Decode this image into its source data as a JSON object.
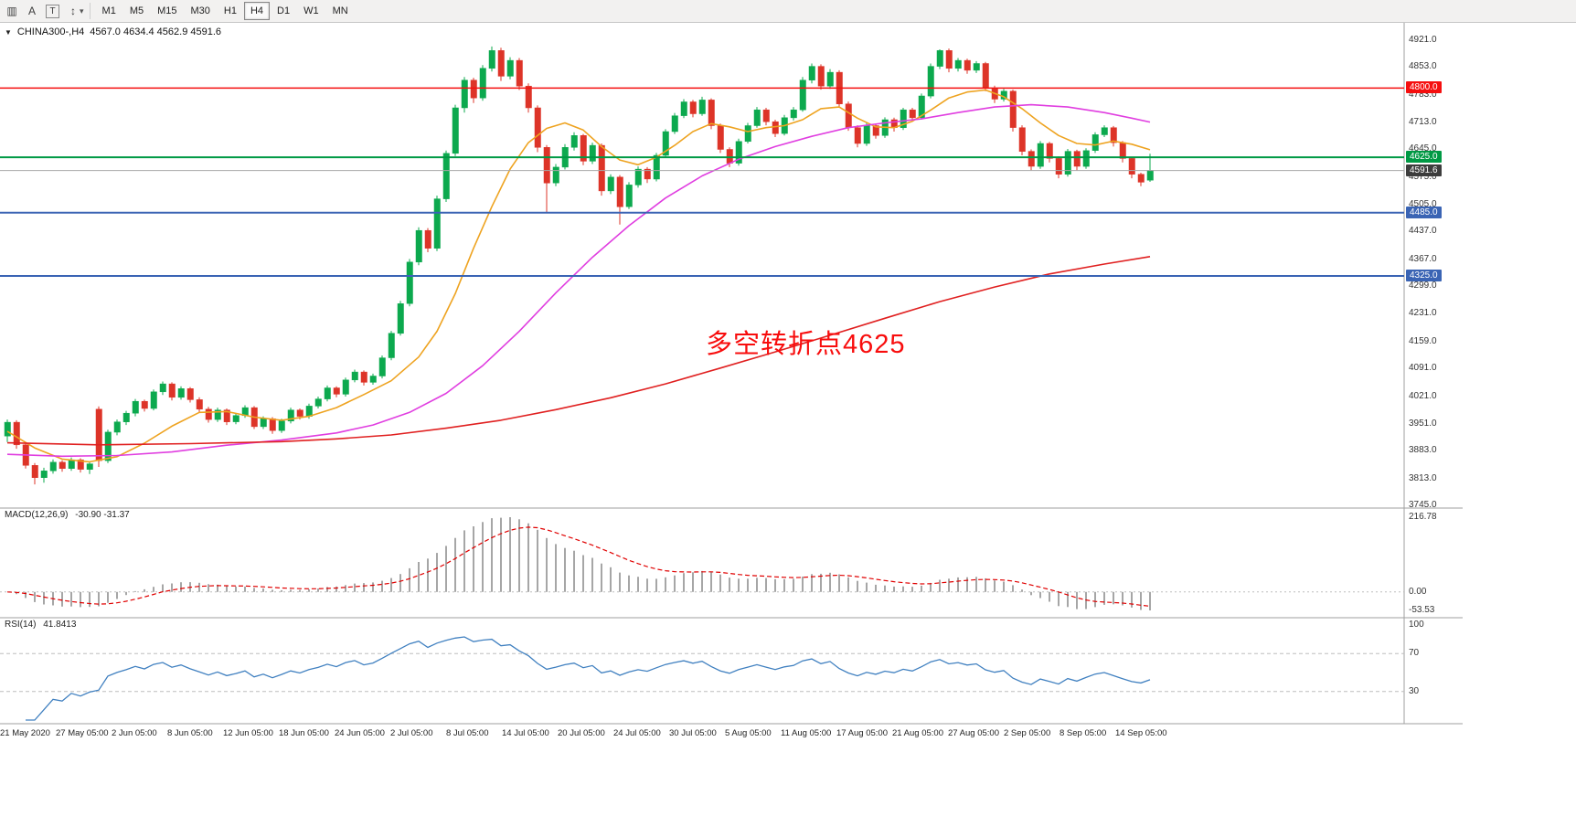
{
  "toolbar": {
    "icons": [
      {
        "name": "chart-window-icon",
        "glyph": "▥",
        "boxed": false
      },
      {
        "name": "cursor-tool-icon",
        "glyph": "A",
        "boxed": false
      },
      {
        "name": "text-label-tool-icon",
        "glyph": "T",
        "boxed": true
      },
      {
        "name": "cycle-symbols-icon",
        "glyph": "↕",
        "boxed": false
      }
    ],
    "dropdown_caret": "▾",
    "timeframes": [
      "M1",
      "M5",
      "M15",
      "M30",
      "H1",
      "H4",
      "D1",
      "W1",
      "MN"
    ],
    "active_timeframe": "H4"
  },
  "chart_data": {
    "type": "candlestick",
    "title": "CHINA300-,H4",
    "collapse_icon": "▼",
    "ohlc_text": "4567.0 4634.4 4562.9 4591.6",
    "ohlc_display": {
      "open": 4567.0,
      "high": 4634.4,
      "low": 4562.9,
      "close": 4591.6
    },
    "annotation": {
      "text": "多空转折点4625",
      "color": "#f80d0d"
    },
    "candle_colors": {
      "bull": "#0ca94e",
      "bear": "#dd3428"
    },
    "price_axis": {
      "min": 3745.0,
      "max": 4921.0,
      "ticks": [
        "4921.0",
        "4853.0",
        "4783.0",
        "4713.0",
        "4645.0",
        "4575.0",
        "4505.0",
        "4437.0",
        "4367.0",
        "4299.0",
        "4231.0",
        "4159.0",
        "4091.0",
        "4021.0",
        "3951.0",
        "3883.0",
        "3813.0",
        "3745.0"
      ]
    },
    "levels": [
      {
        "value": 4800.0,
        "label": "4800.0",
        "color": "#f50f0f",
        "width": 1.5
      },
      {
        "value": 4625.0,
        "label": "4625.0",
        "color": "#009944",
        "width": 2
      },
      {
        "value": 4591.6,
        "label": "4591.6",
        "color": "#a8a8a8",
        "label_bg": "#3d3d3d",
        "width": 1
      },
      {
        "value": 4485.0,
        "label": "4485.0",
        "color": "#3a64b4",
        "width": 2
      },
      {
        "value": 4325.0,
        "label": "4325.0",
        "color": "#3a64b4",
        "width": 2
      }
    ],
    "x_labels": [
      "21 May 2020",
      "27 May 05:00",
      "2 Jun 05:00",
      "8 Jun 05:00",
      "12 Jun 05:00",
      "18 Jun 05:00",
      "24 Jun 05:00",
      "2 Jul 05:00",
      "8 Jul 05:00",
      "14 Jul 05:00",
      "20 Jul 05:00",
      "24 Jul 05:00",
      "30 Jul 05:00",
      "5 Aug 05:00",
      "11 Aug 05:00",
      "17 Aug 05:00",
      "21 Aug 05:00",
      "27 Aug 05:00",
      "2 Sep 05:00",
      "8 Sep 05:00",
      "14 Sep 05:00"
    ],
    "candles": [
      [
        3920,
        3962,
        3905,
        3955
      ],
      [
        3955,
        3960,
        3888,
        3898
      ],
      [
        3898,
        3903,
        3838,
        3846
      ],
      [
        3846,
        3852,
        3798,
        3815
      ],
      [
        3815,
        3840,
        3802,
        3832
      ],
      [
        3832,
        3861,
        3825,
        3854
      ],
      [
        3854,
        3859,
        3830,
        3838
      ],
      [
        3838,
        3866,
        3832,
        3860
      ],
      [
        3860,
        3864,
        3828,
        3836
      ],
      [
        3836,
        3856,
        3824,
        3850
      ],
      [
        3988,
        3995,
        3842,
        3858
      ],
      [
        3858,
        3936,
        3852,
        3930
      ],
      [
        3930,
        3962,
        3922,
        3956
      ],
      [
        3956,
        3984,
        3948,
        3978
      ],
      [
        3978,
        4014,
        3970,
        4008
      ],
      [
        4008,
        4012,
        3982,
        3990
      ],
      [
        3990,
        4038,
        3985,
        4032
      ],
      [
        4032,
        4058,
        4024,
        4052
      ],
      [
        4052,
        4056,
        4010,
        4018
      ],
      [
        4018,
        4046,
        4012,
        4040
      ],
      [
        4040,
        4044,
        4005,
        4012
      ],
      [
        4012,
        4018,
        3980,
        3988
      ],
      [
        3988,
        3994,
        3954,
        3962
      ],
      [
        3962,
        3992,
        3956,
        3986
      ],
      [
        3986,
        3990,
        3948,
        3956
      ],
      [
        3956,
        3978,
        3950,
        3972
      ],
      [
        3972,
        3998,
        3966,
        3992
      ],
      [
        3992,
        3996,
        3938,
        3944
      ],
      [
        3944,
        3970,
        3938,
        3964
      ],
      [
        3964,
        3968,
        3926,
        3934
      ],
      [
        3934,
        3964,
        3928,
        3958
      ],
      [
        3958,
        3992,
        3952,
        3986
      ],
      [
        3986,
        3990,
        3962,
        3970
      ],
      [
        3970,
        4002,
        3964,
        3996
      ],
      [
        3996,
        4020,
        3990,
        4014
      ],
      [
        4014,
        4048,
        4008,
        4042
      ],
      [
        4042,
        4046,
        4018,
        4026
      ],
      [
        4026,
        4068,
        4020,
        4062
      ],
      [
        4062,
        4088,
        4056,
        4082
      ],
      [
        4082,
        4086,
        4048,
        4056
      ],
      [
        4056,
        4078,
        4050,
        4072
      ],
      [
        4072,
        4124,
        4066,
        4118
      ],
      [
        4118,
        4186,
        4112,
        4180
      ],
      [
        4180,
        4262,
        4174,
        4255
      ],
      [
        4255,
        4368,
        4248,
        4360
      ],
      [
        4360,
        4448,
        4352,
        4440
      ],
      [
        4440,
        4446,
        4385,
        4395
      ],
      [
        4395,
        4528,
        4388,
        4520
      ],
      [
        4520,
        4642,
        4512,
        4635
      ],
      [
        4635,
        4758,
        4628,
        4750
      ],
      [
        4750,
        4828,
        4738,
        4820
      ],
      [
        4820,
        4826,
        4762,
        4775
      ],
      [
        4775,
        4858,
        4768,
        4850
      ],
      [
        4850,
        4905,
        4842,
        4895
      ],
      [
        4895,
        4902,
        4818,
        4830
      ],
      [
        4830,
        4878,
        4822,
        4870
      ],
      [
        4870,
        4876,
        4795,
        4805
      ],
      [
        4805,
        4812,
        4738,
        4750
      ],
      [
        4750,
        4756,
        4638,
        4650
      ],
      [
        4650,
        4656,
        4486,
        4560
      ],
      [
        4560,
        4608,
        4552,
        4600
      ],
      [
        4600,
        4658,
        4594,
        4650
      ],
      [
        4650,
        4688,
        4642,
        4680
      ],
      [
        4680,
        4684,
        4605,
        4615
      ],
      [
        4615,
        4662,
        4608,
        4655
      ],
      [
        4655,
        4660,
        4528,
        4540
      ],
      [
        4540,
        4582,
        4532,
        4575
      ],
      [
        4575,
        4580,
        4455,
        4500
      ],
      [
        4500,
        4562,
        4494,
        4555
      ],
      [
        4555,
        4602,
        4548,
        4595
      ],
      [
        4595,
        4600,
        4560,
        4570
      ],
      [
        4570,
        4636,
        4564,
        4630
      ],
      [
        4630,
        4696,
        4624,
        4690
      ],
      [
        4690,
        4737,
        4684,
        4730
      ],
      [
        4730,
        4772,
        4724,
        4765
      ],
      [
        4765,
        4770,
        4726,
        4735
      ],
      [
        4735,
        4778,
        4730,
        4770
      ],
      [
        4770,
        4774,
        4696,
        4705
      ],
      [
        4705,
        4710,
        4636,
        4645
      ],
      [
        4645,
        4650,
        4600,
        4610
      ],
      [
        4610,
        4672,
        4604,
        4665
      ],
      [
        4665,
        4712,
        4660,
        4705
      ],
      [
        4705,
        4752,
        4700,
        4745
      ],
      [
        4745,
        4750,
        4706,
        4715
      ],
      [
        4715,
        4720,
        4676,
        4685
      ],
      [
        4685,
        4732,
        4680,
        4725
      ],
      [
        4725,
        4752,
        4718,
        4745
      ],
      [
        4745,
        4828,
        4740,
        4820
      ],
      [
        4820,
        4862,
        4812,
        4855
      ],
      [
        4855,
        4860,
        4796,
        4805
      ],
      [
        4805,
        4848,
        4798,
        4840
      ],
      [
        4840,
        4845,
        4752,
        4760
      ],
      [
        4760,
        4766,
        4692,
        4700
      ],
      [
        4700,
        4706,
        4650,
        4660
      ],
      [
        4660,
        4712,
        4654,
        4705
      ],
      [
        4705,
        4710,
        4672,
        4680
      ],
      [
        4680,
        4726,
        4674,
        4720
      ],
      [
        4720,
        4725,
        4690,
        4700
      ],
      [
        4700,
        4750,
        4694,
        4745
      ],
      [
        4745,
        4750,
        4716,
        4725
      ],
      [
        4725,
        4786,
        4720,
        4780
      ],
      [
        4780,
        4862,
        4774,
        4855
      ],
      [
        4855,
        4898,
        4848,
        4895
      ],
      [
        4895,
        4900,
        4840,
        4850
      ],
      [
        4850,
        4876,
        4842,
        4870
      ],
      [
        4870,
        4874,
        4836,
        4845
      ],
      [
        4845,
        4868,
        4838,
        4862
      ],
      [
        4862,
        4866,
        4792,
        4800
      ],
      [
        4800,
        4806,
        4762,
        4772
      ],
      [
        4772,
        4798,
        4766,
        4792
      ],
      [
        4792,
        4796,
        4690,
        4700
      ],
      [
        4700,
        4706,
        4630,
        4640
      ],
      [
        4640,
        4645,
        4592,
        4602
      ],
      [
        4602,
        4666,
        4596,
        4660
      ],
      [
        4660,
        4664,
        4612,
        4622
      ],
      [
        4622,
        4627,
        4572,
        4582
      ],
      [
        4582,
        4646,
        4576,
        4640
      ],
      [
        4640,
        4644,
        4592,
        4602
      ],
      [
        4602,
        4648,
        4596,
        4642
      ],
      [
        4642,
        4688,
        4636,
        4682
      ],
      [
        4682,
        4706,
        4676,
        4700
      ],
      [
        4700,
        4704,
        4652,
        4662
      ],
      [
        4662,
        4666,
        4612,
        4622
      ],
      [
        4622,
        4626,
        4572,
        4582
      ],
      [
        4582,
        4586,
        4552,
        4562
      ],
      [
        4567,
        4634,
        4563,
        4592
      ]
    ],
    "moving_averages": [
      {
        "name": "ma-fast",
        "color": "#eea320",
        "points": [
          [
            0,
            3932
          ],
          [
            3,
            3890
          ],
          [
            6,
            3862
          ],
          [
            9,
            3855
          ],
          [
            12,
            3868
          ],
          [
            15,
            3902
          ],
          [
            18,
            3945
          ],
          [
            21,
            3980
          ],
          [
            24,
            3982
          ],
          [
            27,
            3968
          ],
          [
            30,
            3960
          ],
          [
            33,
            3970
          ],
          [
            36,
            3992
          ],
          [
            39,
            4025
          ],
          [
            42,
            4060
          ],
          [
            45,
            4120
          ],
          [
            47,
            4185
          ],
          [
            49,
            4280
          ],
          [
            51,
            4395
          ],
          [
            53,
            4500
          ],
          [
            55,
            4595
          ],
          [
            57,
            4662
          ],
          [
            59,
            4698
          ],
          [
            61,
            4712
          ],
          [
            63,
            4694
          ],
          [
            65,
            4652
          ],
          [
            67,
            4618
          ],
          [
            69,
            4606
          ],
          [
            71,
            4625
          ],
          [
            73,
            4655
          ],
          [
            75,
            4690
          ],
          [
            77,
            4710
          ],
          [
            79,
            4702
          ],
          [
            81,
            4690
          ],
          [
            83,
            4700
          ],
          [
            85,
            4705
          ],
          [
            87,
            4720
          ],
          [
            89,
            4748
          ],
          [
            91,
            4752
          ],
          [
            93,
            4724
          ],
          [
            95,
            4702
          ],
          [
            97,
            4700
          ],
          [
            99,
            4716
          ],
          [
            101,
            4744
          ],
          [
            103,
            4775
          ],
          [
            105,
            4790
          ],
          [
            107,
            4795
          ],
          [
            109,
            4778
          ],
          [
            111,
            4748
          ],
          [
            113,
            4712
          ],
          [
            115,
            4680
          ],
          [
            117,
            4660
          ],
          [
            119,
            4656
          ],
          [
            121,
            4666
          ],
          [
            123,
            4658
          ],
          [
            125,
            4644
          ]
        ]
      },
      {
        "name": "ma-mid",
        "color": "#e03ee0",
        "points": [
          [
            0,
            3874
          ],
          [
            6,
            3869
          ],
          [
            12,
            3871
          ],
          [
            18,
            3880
          ],
          [
            24,
            3897
          ],
          [
            30,
            3910
          ],
          [
            36,
            3928
          ],
          [
            40,
            3948
          ],
          [
            44,
            3980
          ],
          [
            48,
            4028
          ],
          [
            52,
            4098
          ],
          [
            56,
            4185
          ],
          [
            60,
            4282
          ],
          [
            64,
            4372
          ],
          [
            68,
            4452
          ],
          [
            72,
            4522
          ],
          [
            76,
            4578
          ],
          [
            80,
            4620
          ],
          [
            84,
            4652
          ],
          [
            88,
            4678
          ],
          [
            92,
            4700
          ],
          [
            96,
            4712
          ],
          [
            100,
            4722
          ],
          [
            104,
            4738
          ],
          [
            108,
            4752
          ],
          [
            112,
            4758
          ],
          [
            116,
            4752
          ],
          [
            120,
            4738
          ],
          [
            123,
            4724
          ],
          [
            125,
            4714
          ]
        ]
      },
      {
        "name": "ma-slow",
        "color": "#e02020",
        "points": [
          [
            0,
            3903
          ],
          [
            10,
            3898
          ],
          [
            20,
            3901
          ],
          [
            30,
            3906
          ],
          [
            36,
            3913
          ],
          [
            42,
            3923
          ],
          [
            48,
            3940
          ],
          [
            54,
            3960
          ],
          [
            60,
            3987
          ],
          [
            66,
            4017
          ],
          [
            72,
            4052
          ],
          [
            78,
            4092
          ],
          [
            84,
            4133
          ],
          [
            90,
            4175
          ],
          [
            96,
            4218
          ],
          [
            102,
            4260
          ],
          [
            108,
            4297
          ],
          [
            114,
            4330
          ],
          [
            120,
            4355
          ],
          [
            125,
            4374
          ]
        ]
      }
    ],
    "indicators": [
      {
        "name": "MACD",
        "label": "MACD(12,26,9)",
        "values_text": "-30.90 -31.37",
        "params": [
          12,
          26,
          9
        ],
        "axis_ticks": [
          "216.78",
          "0.00",
          "-53.53"
        ],
        "axis_max": 216.78,
        "axis_min": -53.53,
        "histogram_color": "#a6a6a6",
        "signal_color": "#e00000"
      },
      {
        "name": "RSI",
        "label": "RSI(14)",
        "value_text": "41.8413",
        "axis_ticks": [
          "100",
          "70",
          "30"
        ],
        "levels": [
          70,
          30
        ],
        "line_color": "#4080c0"
      }
    ]
  }
}
